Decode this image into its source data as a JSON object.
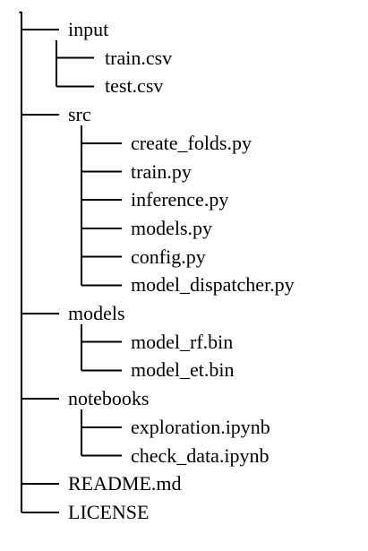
{
  "tree": {
    "root": ".",
    "children": [
      {
        "name": "input",
        "children": [
          {
            "name": "train.csv"
          },
          {
            "name": "test.csv"
          }
        ]
      },
      {
        "name": "src",
        "children": [
          {
            "name": "create_folds.py"
          },
          {
            "name": "train.py"
          },
          {
            "name": "inference.py"
          },
          {
            "name": "models.py"
          },
          {
            "name": "config.py"
          },
          {
            "name": "model_dispatcher.py"
          }
        ]
      },
      {
        "name": "models",
        "children": [
          {
            "name": "model_rf.bin"
          },
          {
            "name": "model_et.bin"
          }
        ]
      },
      {
        "name": "notebooks",
        "children": [
          {
            "name": "exploration.ipynb"
          },
          {
            "name": "check_data.ipynb"
          }
        ]
      },
      {
        "name": "README.md"
      },
      {
        "name": "LICENSE"
      }
    ]
  }
}
